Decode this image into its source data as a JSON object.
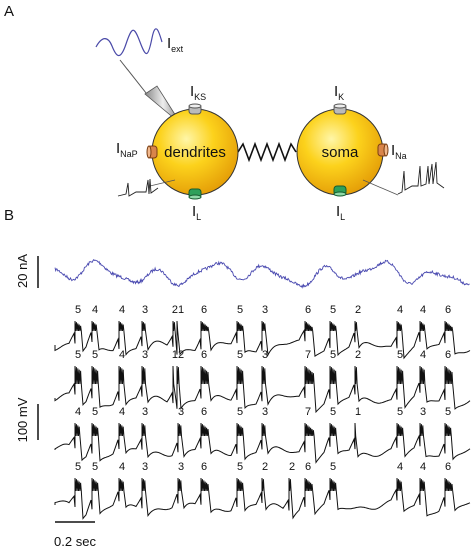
{
  "panel_a": {
    "label": "A",
    "external_current": {
      "main": "I",
      "sub": "ext"
    },
    "dendrites": {
      "label": "dendrites",
      "channels": [
        {
          "main": "I",
          "sub": "KS"
        },
        {
          "main": "I",
          "sub": "NaP"
        },
        {
          "main": "I",
          "sub": "L"
        }
      ]
    },
    "soma": {
      "label": "soma",
      "channels": [
        {
          "main": "I",
          "sub": "K"
        },
        {
          "main": "I",
          "sub": "Na"
        },
        {
          "main": "I",
          "sub": "L"
        }
      ]
    }
  },
  "panel_b": {
    "label": "B",
    "current_scale": "20 nA",
    "voltage_scale": "100 mV",
    "time_scale": "0.2 sec",
    "traces": [
      [
        "5",
        "4",
        "4",
        "3",
        "21",
        "6",
        "5",
        "3",
        "6",
        "5",
        "2",
        "4",
        "4",
        "6"
      ],
      [
        "5",
        "5",
        "4",
        "3",
        "12",
        "6",
        "5",
        "3",
        "7",
        "5",
        "2",
        "5",
        "4",
        "6"
      ],
      [
        "4",
        "5",
        "4",
        "3",
        "3",
        "6",
        "5",
        "3",
        "7",
        "5",
        "1",
        "5",
        "3",
        "5"
      ],
      [
        "5",
        "5",
        "4",
        "3",
        "3",
        "6",
        "5",
        "2",
        "2",
        "6",
        "5",
        "4",
        "4",
        "6"
      ]
    ]
  }
}
